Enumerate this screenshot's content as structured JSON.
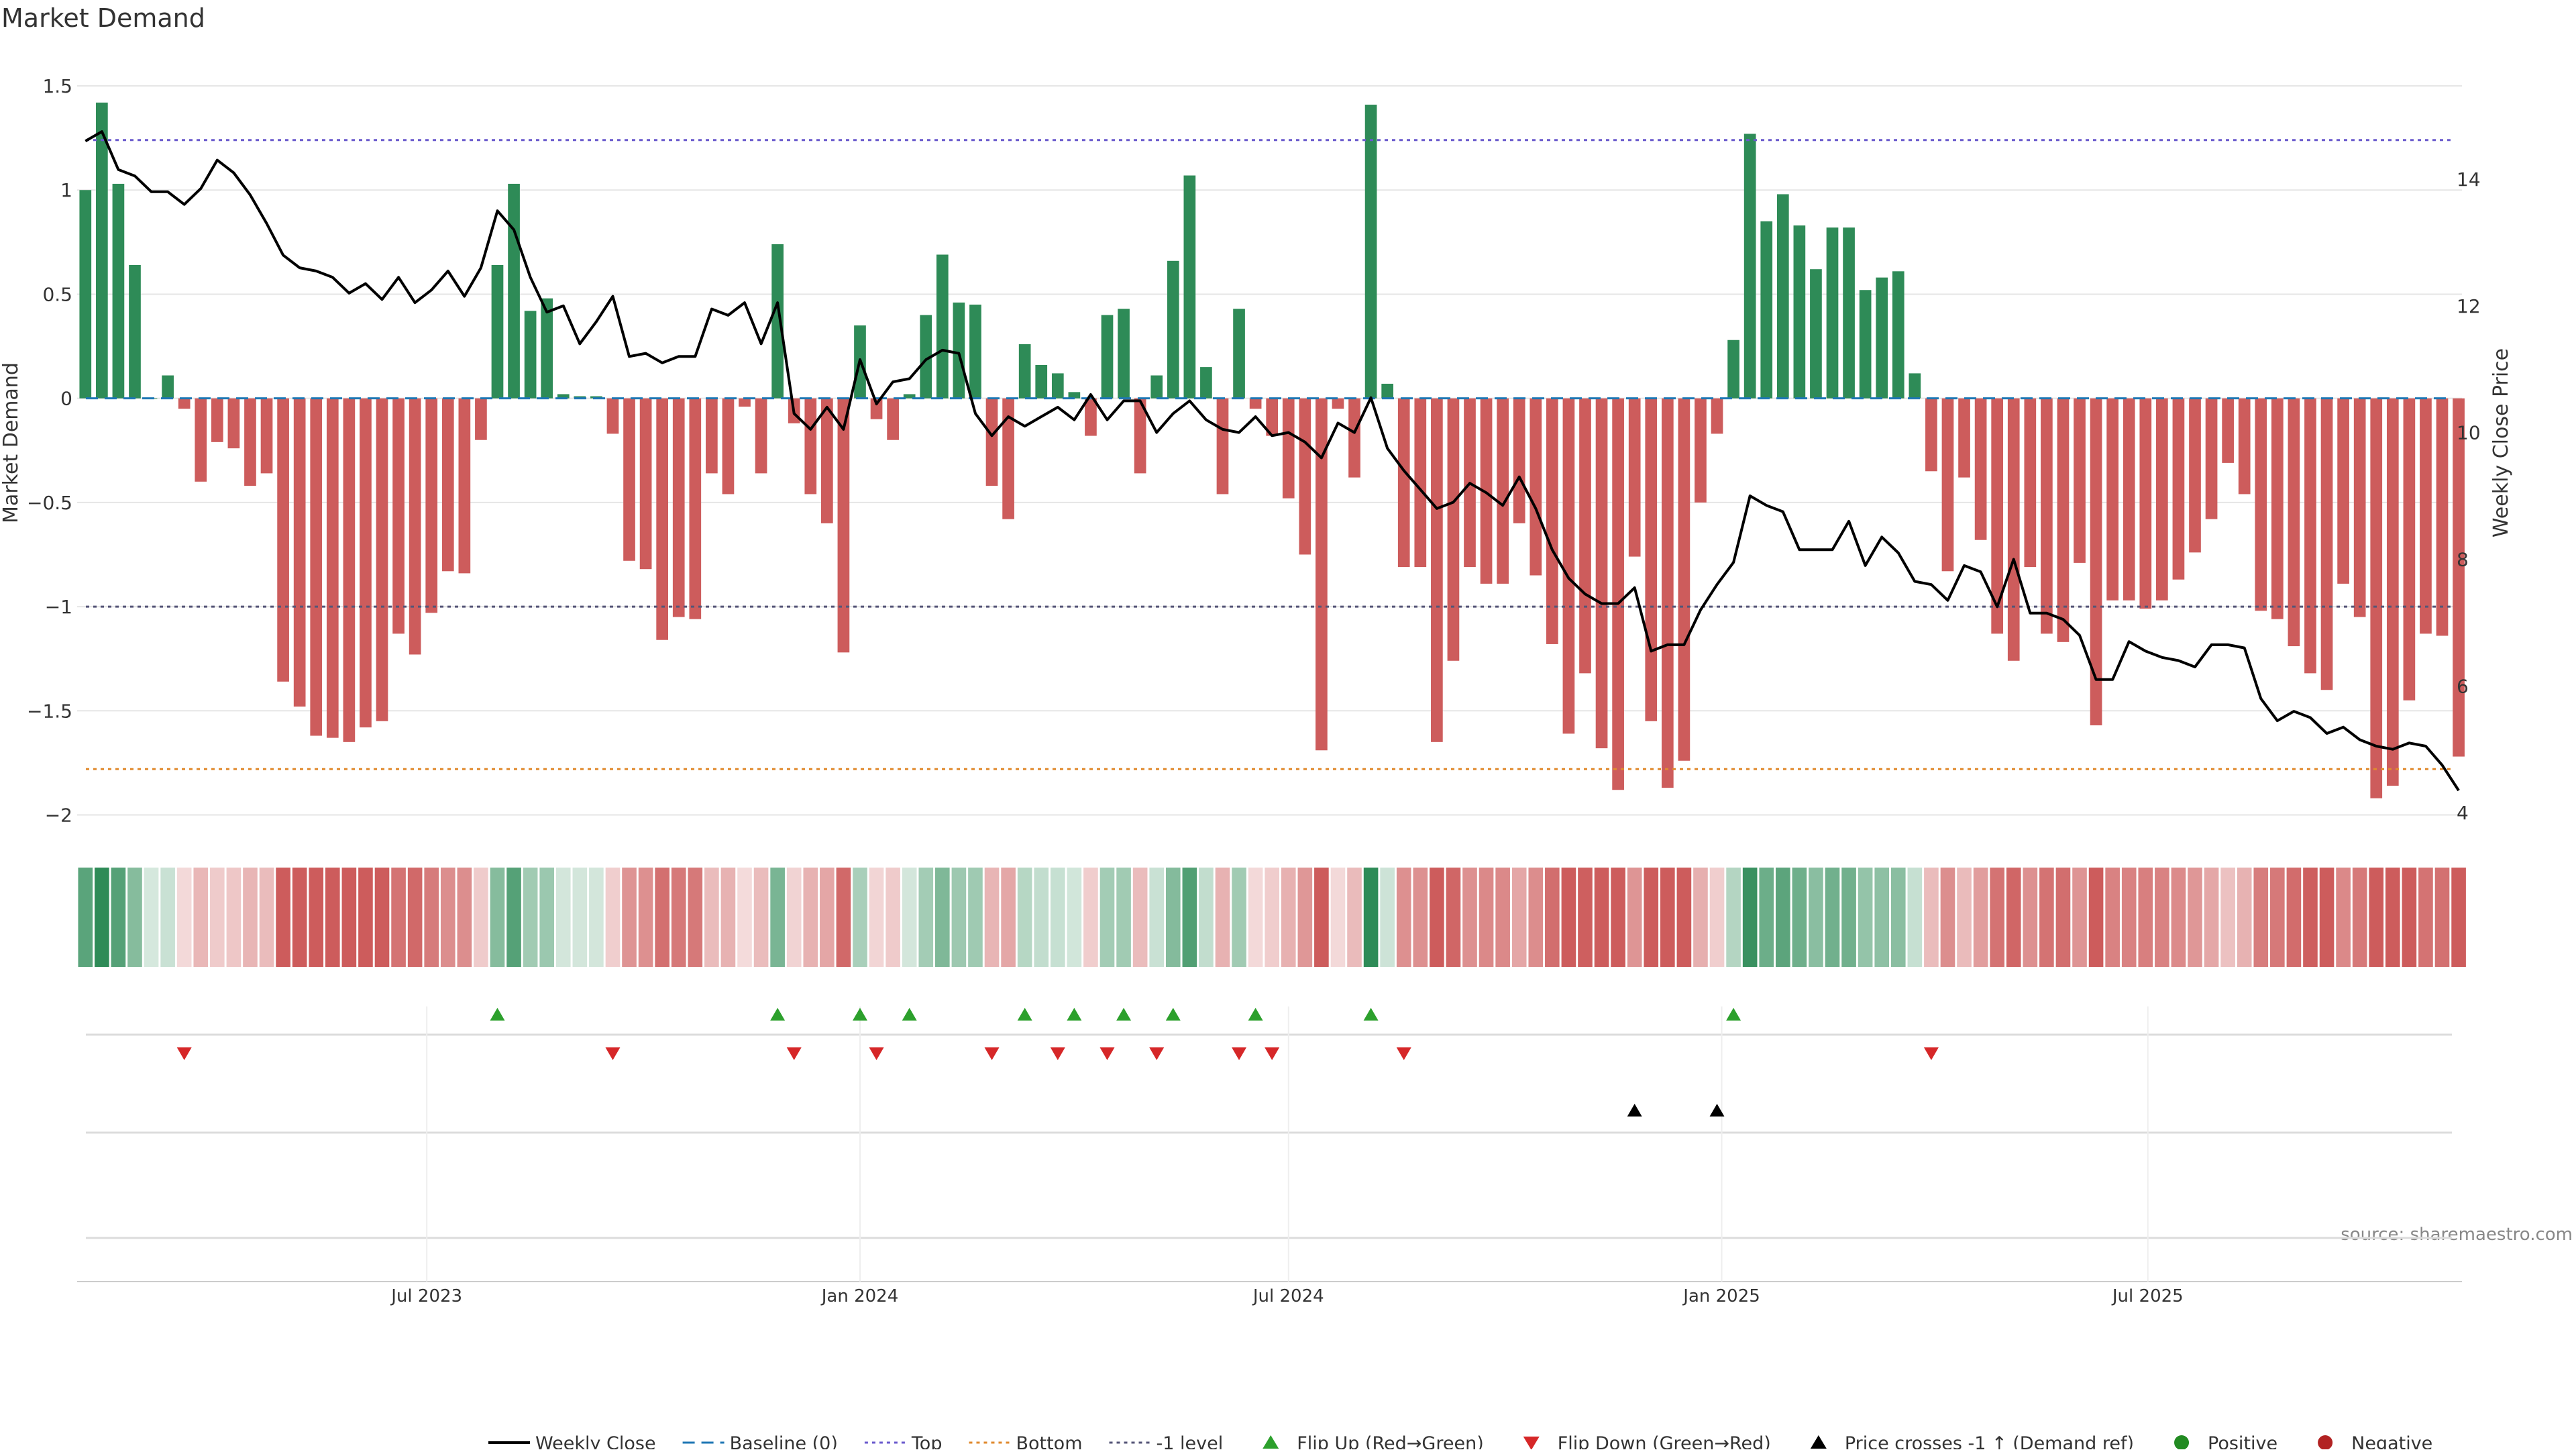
{
  "title": "Market Demand",
  "source": "source: sharemaestro.com",
  "colors": {
    "positive": "#2e8b57",
    "negative": "#cd5c5c",
    "close": "#000000",
    "baseline": "#1f77b4",
    "top": "#6a5acd",
    "bottom": "#e08a2e",
    "minus1": "#555577",
    "flip_up": "#2ca02c",
    "flip_down": "#d62728",
    "cross": "#000000",
    "pos_dot": "#228b22",
    "neg_dot": "#b22222",
    "grid": "#e6e6e6"
  },
  "legend": [
    {
      "label": "Weekly Close",
      "kind": "line",
      "color": "#000000"
    },
    {
      "label": "Baseline (0)",
      "kind": "dash",
      "color": "#1f77b4"
    },
    {
      "label": "Top",
      "kind": "dot",
      "color": "#6a5acd"
    },
    {
      "label": "Bottom",
      "kind": "dot",
      "color": "#e08a2e"
    },
    {
      "label": "-1 level",
      "kind": "dot",
      "color": "#555577"
    },
    {
      "label": "Flip Up (Red→Green)",
      "kind": "tri-up",
      "color": "#2ca02c"
    },
    {
      "label": "Flip Down (Green→Red)",
      "kind": "tri-down",
      "color": "#d62728"
    },
    {
      "label": "Price crosses -1 ↑ (Demand ref)",
      "kind": "tri-up",
      "color": "#000000"
    },
    {
      "label": "Positive",
      "kind": "circle",
      "color": "#228b22"
    },
    {
      "label": "Negative",
      "kind": "circle",
      "color": "#b22222"
    }
  ],
  "chart_data": {
    "type": "bar",
    "title": "Market Demand",
    "ylabel": "Market Demand",
    "y2label": "Weekly Close Price",
    "ylim": [
      -2.05,
      1.6
    ],
    "y2lim": [
      3.8,
      15.8
    ],
    "yticks": [
      "1.5",
      "1",
      "0.5",
      "0",
      "−0.5",
      "−1",
      "−1.5",
      "−2"
    ],
    "yticks_values": [
      1.5,
      1,
      0.5,
      0,
      -0.5,
      -1,
      -1.5,
      -2
    ],
    "y2ticks": [
      "14",
      "12",
      "10",
      "8",
      "6",
      "4"
    ],
    "y2ticks_values": [
      14,
      12,
      10,
      8,
      6,
      4
    ],
    "x_start": "2023-02-06",
    "x_step_days": 7,
    "x_ticks": [
      {
        "label": "Jul 2023",
        "date": "2023-07-01"
      },
      {
        "label": "Jan 2024",
        "date": "2024-01-01"
      },
      {
        "label": "Jul 2024",
        "date": "2024-07-01"
      },
      {
        "label": "Jan 2025",
        "date": "2025-01-01"
      },
      {
        "label": "Jul 2025",
        "date": "2025-07-01"
      }
    ],
    "reference_lines": {
      "top": 1.24,
      "bottom": -1.78,
      "minus1": -1.0,
      "baseline": 0
    },
    "demand": [
      1.0,
      1.42,
      1.03,
      0.64,
      0.0,
      0.11,
      -0.05,
      -0.4,
      -0.21,
      -0.24,
      -0.42,
      -0.36,
      -1.36,
      -1.48,
      -1.62,
      -1.63,
      -1.65,
      -1.58,
      -1.55,
      -1.13,
      -1.23,
      -1.03,
      -0.83,
      -0.84,
      -0.2,
      0.64,
      1.03,
      0.42,
      0.48,
      0.02,
      0.01,
      0.01,
      -0.17,
      -0.78,
      -0.82,
      -1.16,
      -1.05,
      -1.06,
      -0.36,
      -0.46,
      -0.04,
      -0.36,
      0.74,
      -0.12,
      -0.46,
      -0.6,
      -1.22,
      0.35,
      -0.1,
      -0.2,
      0.02,
      0.4,
      0.69,
      0.46,
      0.45,
      -0.42,
      -0.58,
      0.26,
      0.16,
      0.12,
      0.03,
      -0.18,
      0.4,
      0.43,
      -0.36,
      0.11,
      0.66,
      1.07,
      0.15,
      -0.46,
      0.43,
      -0.05,
      -0.18,
      -0.48,
      -0.75,
      -1.69,
      -0.05,
      -0.38,
      1.41,
      0.07,
      -0.81,
      -0.81,
      -1.65,
      -1.26,
      -0.81,
      -0.89,
      -0.89,
      -0.6,
      -0.85,
      -1.18,
      -1.61,
      -1.32,
      -1.68,
      -1.88,
      -0.76,
      -1.55,
      -1.87,
      -1.74,
      -0.5,
      -0.17,
      0.28,
      1.27,
      0.85,
      0.98,
      0.83,
      0.62,
      0.82,
      0.82,
      0.52,
      0.58,
      0.61,
      0.12,
      -0.35,
      -0.83,
      -0.38,
      -0.68,
      -1.13,
      -1.26,
      -0.81,
      -1.13,
      -1.17,
      -0.79,
      -1.57,
      -0.97,
      -0.97,
      -1.01,
      -0.97,
      -0.87,
      -0.74,
      -0.58,
      -0.31,
      -0.46,
      -1.02,
      -1.06,
      -1.19,
      -1.32,
      -1.4,
      -0.89,
      -1.05,
      -1.92,
      -1.86,
      -1.45,
      -1.13,
      -1.14,
      -1.72
    ],
    "close": [
      14.6,
      14.75,
      14.15,
      14.05,
      13.8,
      13.8,
      13.6,
      13.85,
      14.3,
      14.1,
      13.75,
      13.3,
      12.8,
      12.6,
      12.55,
      12.45,
      12.2,
      12.35,
      12.1,
      12.45,
      12.05,
      12.25,
      12.55,
      12.15,
      12.6,
      13.5,
      13.2,
      12.45,
      11.9,
      12.0,
      11.4,
      11.75,
      12.15,
      11.2,
      11.25,
      11.1,
      11.2,
      11.2,
      11.95,
      11.85,
      12.05,
      11.4,
      12.05,
      10.3,
      10.05,
      10.4,
      10.05,
      11.15,
      10.45,
      10.8,
      10.85,
      11.15,
      11.3,
      11.25,
      10.3,
      9.95,
      10.25,
      10.1,
      10.25,
      10.4,
      10.2,
      10.6,
      10.2,
      10.5,
      10.5,
      10.0,
      10.3,
      10.5,
      10.2,
      10.05,
      10.0,
      10.25,
      9.95,
      10.0,
      9.85,
      9.6,
      10.15,
      10.0,
      10.55,
      9.75,
      9.4,
      9.1,
      8.8,
      8.9,
      9.2,
      9.05,
      8.85,
      9.3,
      8.8,
      8.15,
      7.7,
      7.45,
      7.3,
      7.3,
      7.55,
      6.55,
      6.65,
      6.65,
      7.2,
      7.6,
      7.95,
      9.0,
      8.85,
      8.75,
      8.15,
      8.15,
      8.15,
      8.6,
      7.9,
      8.35,
      8.1,
      7.65,
      7.6,
      7.35,
      7.9,
      7.8,
      7.25,
      8.0,
      7.15,
      7.15,
      7.05,
      6.8,
      6.1,
      6.1,
      6.7,
      6.55,
      6.45,
      6.4,
      6.3,
      6.65,
      6.65,
      6.6,
      5.8,
      5.45,
      5.6,
      5.5,
      5.25,
      5.35,
      5.15,
      5.05,
      5.0,
      5.1,
      5.05,
      4.75,
      4.35
    ],
    "flip_up_idx": [
      25,
      42,
      47,
      50,
      57,
      60,
      63,
      66,
      71,
      78,
      100
    ],
    "flip_down_idx": [
      6,
      32,
      43,
      48,
      55,
      59,
      62,
      65,
      70,
      72,
      80,
      112
    ],
    "cross_idx": [
      94,
      99
    ]
  }
}
